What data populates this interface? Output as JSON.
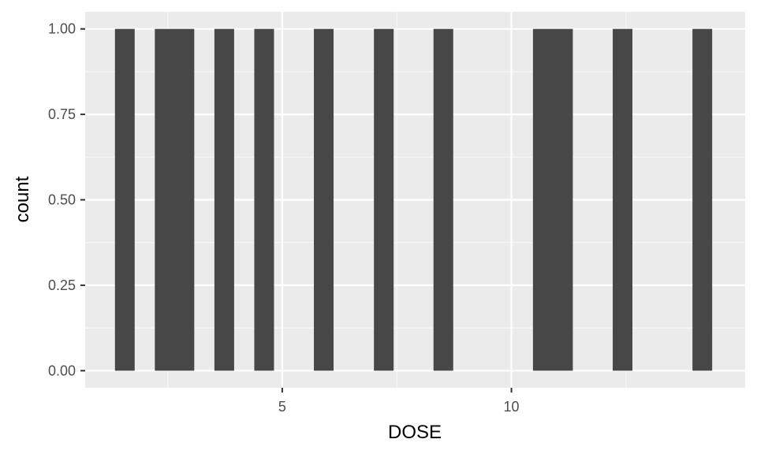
{
  "chart_data": {
    "type": "bar",
    "title": "",
    "xlabel": "DOSE",
    "ylabel": "count",
    "xlim": [
      0.7,
      15.1
    ],
    "ylim": [
      -0.05,
      1.05
    ],
    "x_ticks": [
      5,
      10
    ],
    "x_tick_labels": [
      "5",
      "10"
    ],
    "x_minor_ticks": [
      2.5,
      7.5,
      12.5
    ],
    "y_ticks": [
      0,
      0.25,
      0.5,
      0.75,
      1.0
    ],
    "y_tick_labels": [
      "0.00",
      "0.25",
      "0.50",
      "0.75",
      "1.00"
    ],
    "grid": true,
    "bin_width": 0.44,
    "series": [
      {
        "name": "count",
        "bins": [
          {
            "xmin": 1.35,
            "xmax": 1.78,
            "count": 1
          },
          {
            "xmin": 2.22,
            "xmax": 3.08,
            "count": 1
          },
          {
            "xmin": 3.52,
            "xmax": 3.95,
            "count": 1
          },
          {
            "xmin": 4.39,
            "xmax": 4.82,
            "count": 1
          },
          {
            "xmin": 5.69,
            "xmax": 6.12,
            "count": 1
          },
          {
            "xmin": 7.0,
            "xmax": 7.43,
            "count": 1
          },
          {
            "xmin": 8.3,
            "xmax": 8.73,
            "count": 1
          },
          {
            "xmin": 10.47,
            "xmax": 11.34,
            "count": 1
          },
          {
            "xmin": 12.21,
            "xmax": 12.64,
            "count": 1
          },
          {
            "xmin": 13.95,
            "xmax": 14.38,
            "count": 1
          }
        ]
      }
    ],
    "colors": {
      "bar": "#474747",
      "panel": "#ebebeb",
      "grid_major": "#ffffff",
      "grid_minor": "#f7f7f7",
      "tick": "#333333"
    }
  }
}
